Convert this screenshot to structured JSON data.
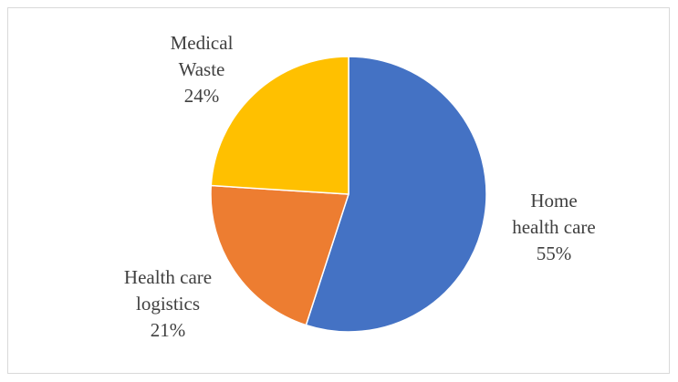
{
  "chart_data": {
    "type": "pie",
    "title": "",
    "categories": [
      "Home health care",
      "Health care logistics",
      "Medical Waste"
    ],
    "values": [
      55,
      21,
      24
    ],
    "labels": [
      {
        "line1": "Home",
        "line2": "health care",
        "percent": "55%"
      },
      {
        "line1": "Health care",
        "line2": "logistics",
        "percent": "21%"
      },
      {
        "line1": "Medical",
        "line2": "Waste",
        "percent": "24%"
      }
    ],
    "colors": [
      "#4472c4",
      "#ed7d31",
      "#ffc000"
    ],
    "start_angle_deg": 0,
    "direction": "clockwise",
    "legend": "none"
  }
}
